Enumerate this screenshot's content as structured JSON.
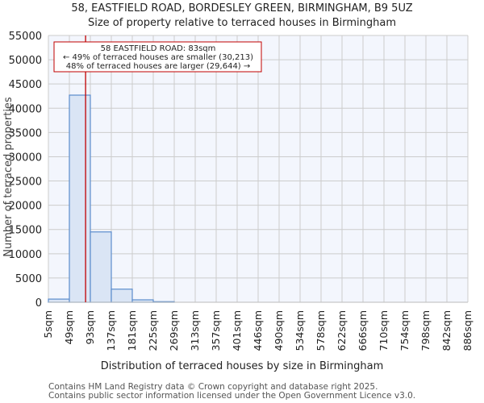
{
  "header": {
    "title_line1": "58, EASTFIELD ROAD, BORDESLEY GREEN, BIRMINGHAM, B9 5UZ",
    "title_line2": "Size of property relative to terraced houses in Birmingham"
  },
  "annotation": {
    "line1": "58 EASTFIELD ROAD: 83sqm",
    "line2": "← 49% of terraced houses are smaller (30,213)",
    "line3": "48% of terraced houses are larger (29,644) →"
  },
  "footer": {
    "line1": "Contains HM Land Registry data © Crown copyright and database right 2025.",
    "line2": "Contains public sector information licensed under the Open Government Licence v3.0."
  },
  "colors": {
    "bar_fill": "#dae5f5",
    "bar_edge": "#5b8ccc",
    "plot_bg": "#f3f6fd",
    "grid": "#cccccc",
    "marker": "#c00000"
  },
  "chart_data": {
    "type": "bar",
    "title": "58, EASTFIELD ROAD, BORDESLEY GREEN, BIRMINGHAM, B9 5UZ",
    "subtitle": "Size of property relative to terraced houses in Birmingham",
    "xlabel": "Distribution of terraced houses by size in Birmingham",
    "ylabel": "Number of terraced properties",
    "categories": [
      "5sqm",
      "49sqm",
      "93sqm",
      "137sqm",
      "181sqm",
      "225sqm",
      "269sqm",
      "313sqm",
      "357sqm",
      "401sqm",
      "446sqm",
      "490sqm",
      "534sqm",
      "578sqm",
      "622sqm",
      "666sqm",
      "710sqm",
      "754sqm",
      "798sqm",
      "842sqm",
      "886sqm"
    ],
    "values": [
      650,
      42700,
      14500,
      2700,
      500,
      120,
      0,
      0,
      0,
      0,
      0,
      0,
      0,
      0,
      0,
      0,
      0,
      0,
      0,
      0
    ],
    "yticks": [
      0,
      5000,
      10000,
      15000,
      20000,
      25000,
      30000,
      35000,
      40000,
      45000,
      50000,
      55000
    ],
    "ylim": [
      0,
      55000
    ],
    "grid": true,
    "marker": {
      "x_value": 83,
      "label": "58 EASTFIELD ROAD: 83sqm"
    },
    "annotations": [
      "58 EASTFIELD ROAD: 83sqm",
      "← 49% of terraced houses are smaller (30,213)",
      "48% of terraced houses are larger (29,644) →"
    ]
  }
}
